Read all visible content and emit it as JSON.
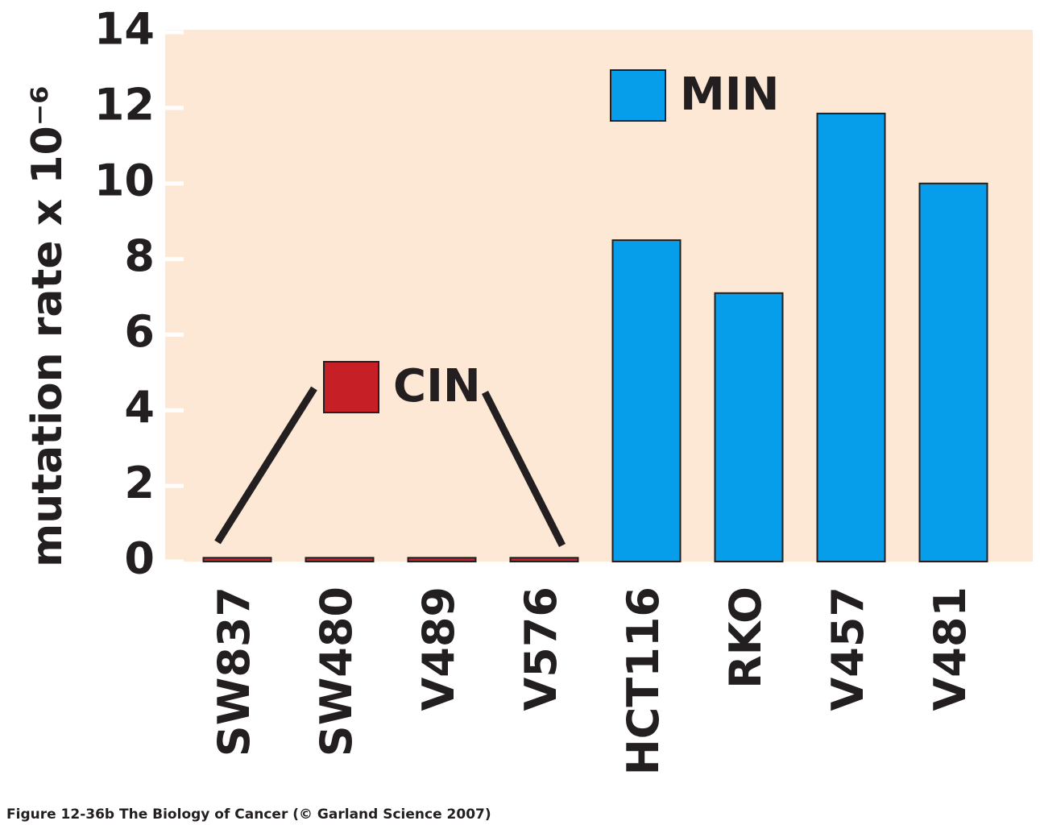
{
  "chart_data": {
    "type": "bar",
    "ylabel": "mutation rate x 10⁻⁶",
    "caption": "Figure 12-36b  The Biology of Cancer (© Garland Science 2007)",
    "categories": [
      "SW837",
      "SW480",
      "V489",
      "V576",
      "HCT116",
      "RKO",
      "V457",
      "V481"
    ],
    "series": [
      {
        "name": "CIN",
        "color": "#c62026",
        "values": [
          0.1,
          0.1,
          0.1,
          0.1,
          null,
          null,
          null,
          null
        ]
      },
      {
        "name": "MIN",
        "color": "#069eea",
        "values": [
          null,
          null,
          null,
          null,
          8.5,
          7.1,
          11.85,
          10.0
        ]
      }
    ],
    "ylim": [
      0,
      14
    ],
    "yticks": [
      0,
      2,
      4,
      6,
      8,
      10,
      12,
      14
    ]
  }
}
